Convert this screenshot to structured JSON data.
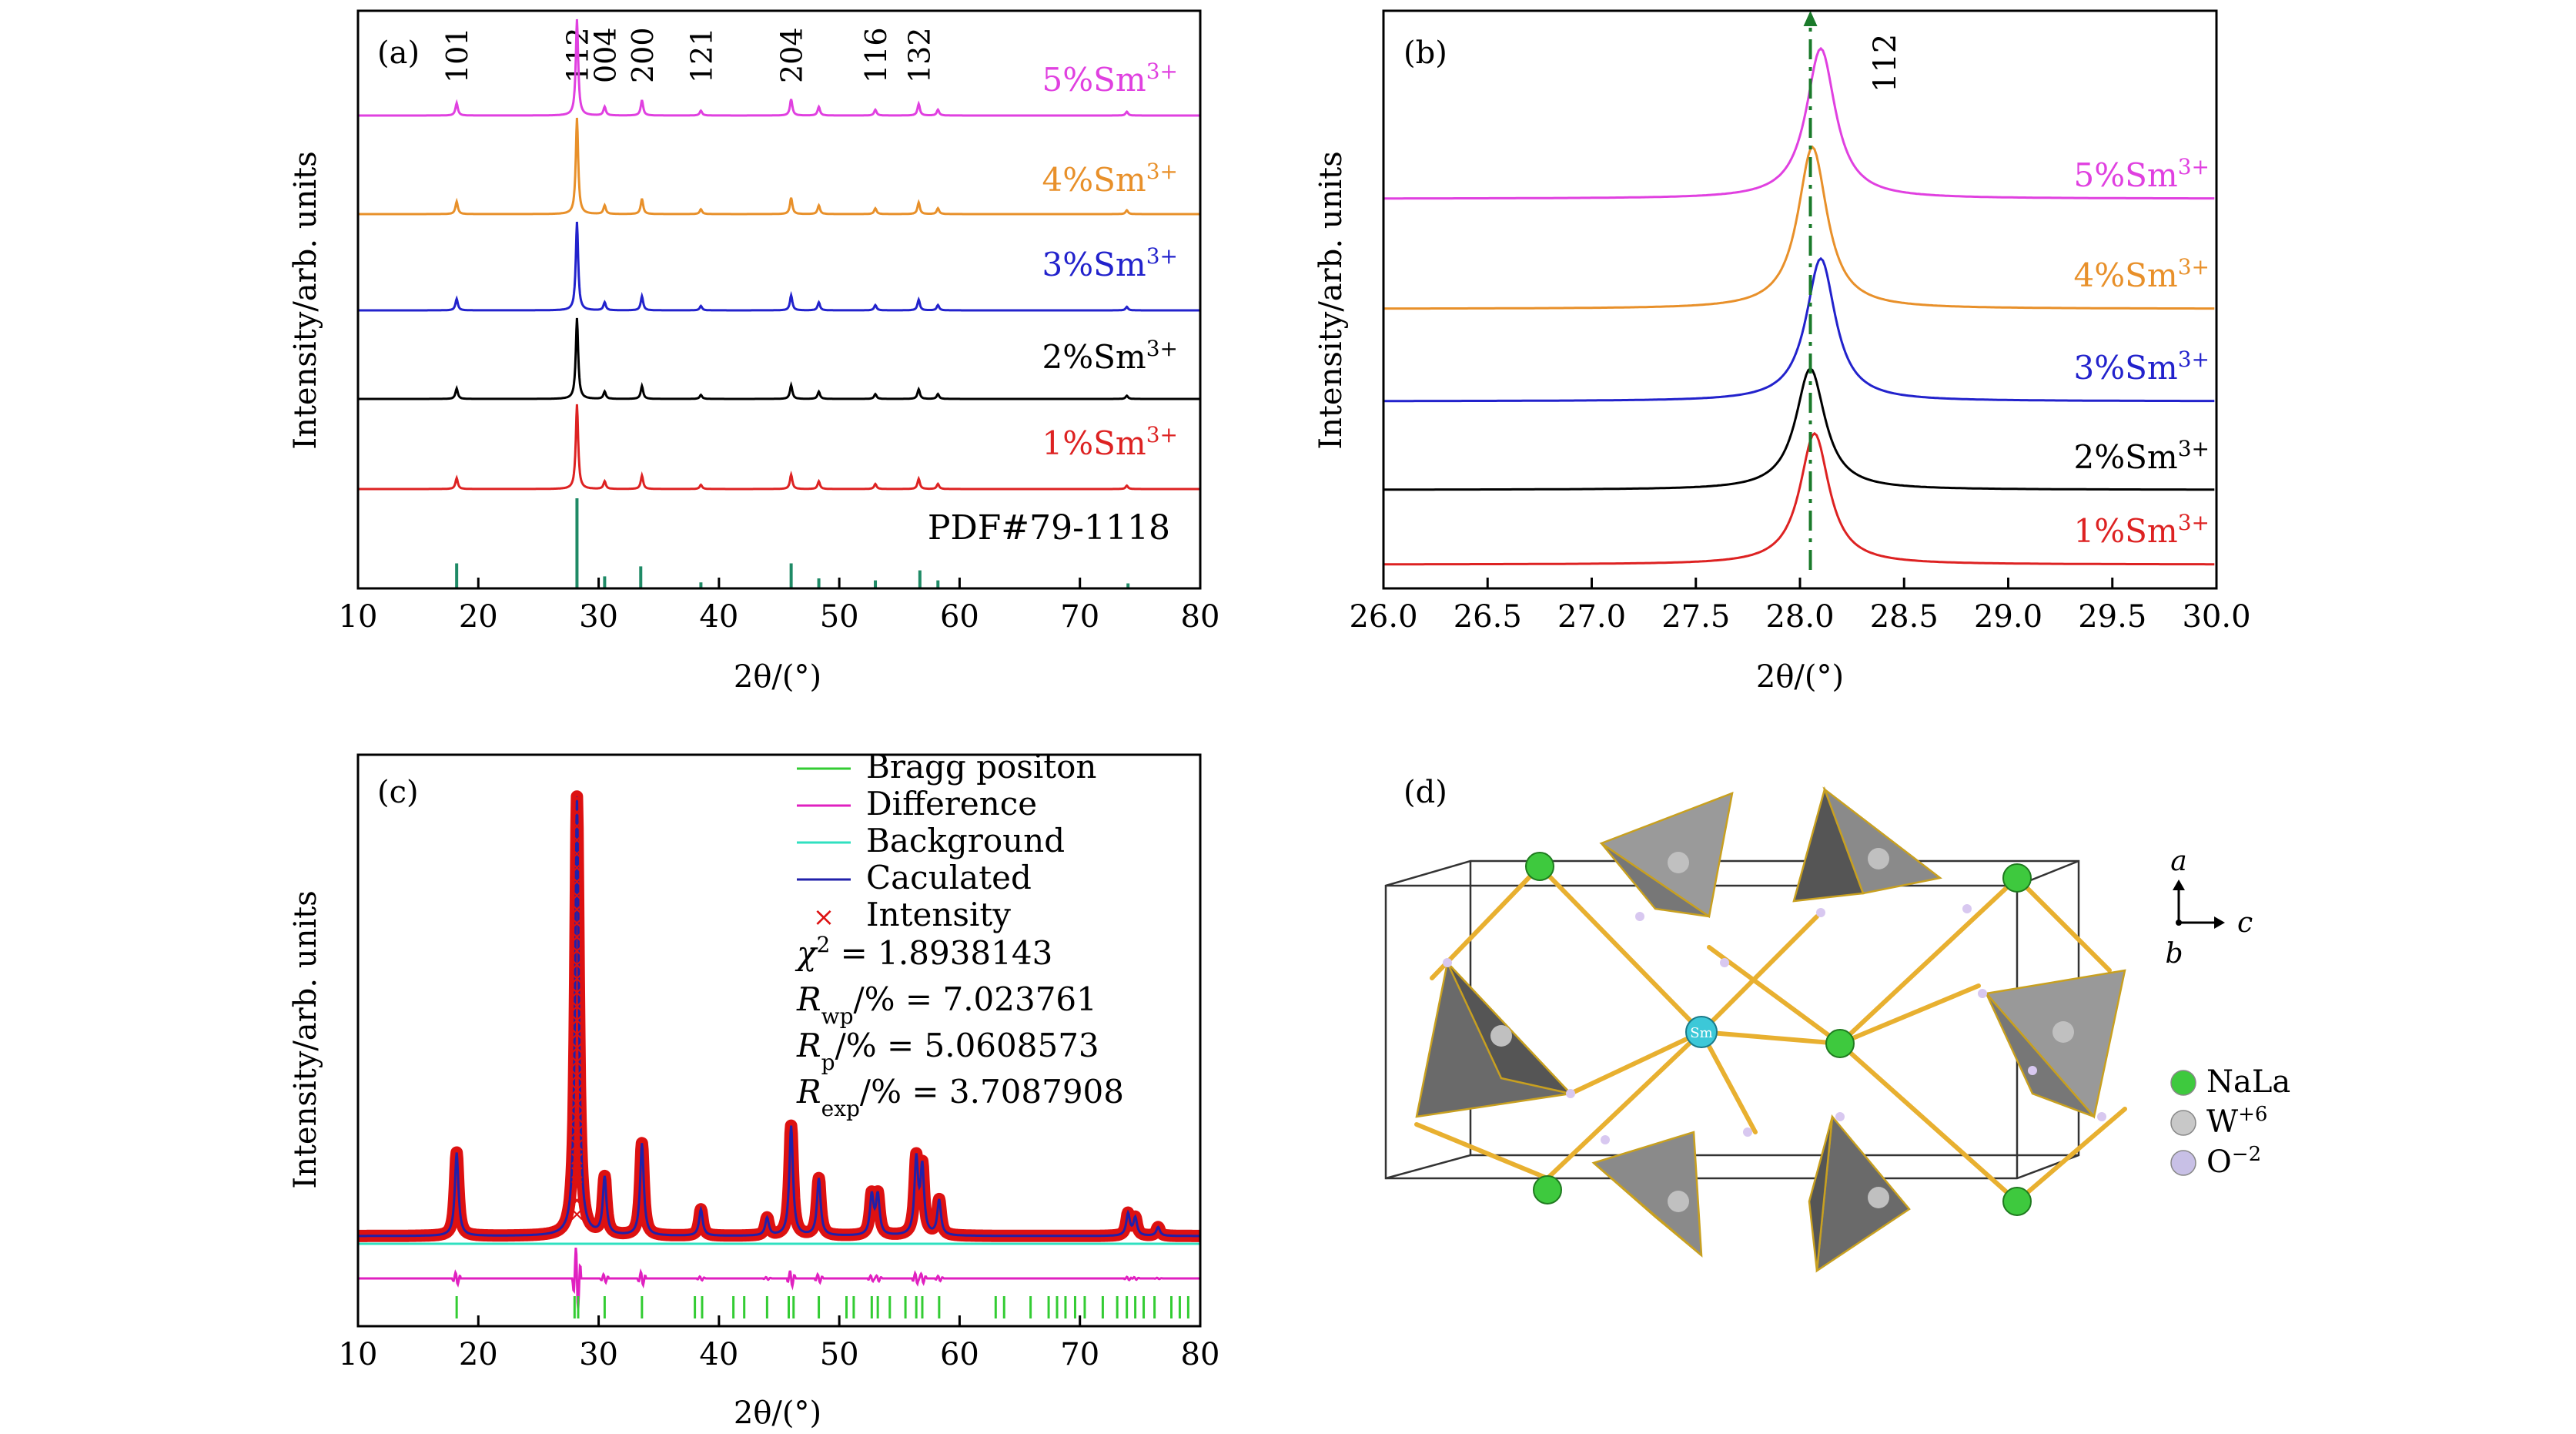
{
  "panels": {
    "a": {
      "label": "(a)",
      "xlabel": "2θ/(°)",
      "ylabel": "Intensity/arb. units",
      "pdf_label": "PDF#79-1118"
    },
    "b": {
      "label": "(b)",
      "xlabel": "2θ/(°)",
      "ylabel": "Intensity/arb. units",
      "peak_label": "112"
    },
    "c": {
      "label": "(c)",
      "xlabel": "2θ/(°)",
      "ylabel": "Intensity/arb. units",
      "legend": [
        "Bragg positon",
        "Difference",
        "Background",
        "Caculated",
        "Intensity"
      ],
      "stats": [
        {
          "sym": "χ",
          "sup": "2",
          "sub": "",
          "rest": " = 1.8938143"
        },
        {
          "sym": "R",
          "sup": "",
          "sub": "wp",
          "rest": "/% = 7.023761"
        },
        {
          "sym": "R",
          "sup": "",
          "sub": "p",
          "rest": "/% = 5.0608573"
        },
        {
          "sym": "R",
          "sup": "",
          "sub": "exp",
          "rest": "/% = 3.7087908"
        }
      ]
    },
    "d": {
      "label": "(d)",
      "axes": {
        "a": "a",
        "b": "b",
        "c": "c"
      },
      "atom_sm": "Sm",
      "legend": [
        {
          "base": "NaLa",
          "sup": "",
          "color": "#3ec93e"
        },
        {
          "base": "W",
          "sup": "+6",
          "color": "#c8c8c8"
        },
        {
          "base": "O",
          "sup": "−2",
          "color": "#c8c0e6"
        }
      ]
    }
  },
  "chart_data": [
    {
      "panel": "a",
      "type": "line",
      "title": "",
      "xlabel": "2θ/(°)",
      "ylabel": "Intensity/arb. units",
      "xlim": [
        10,
        80
      ],
      "xticks": [
        10,
        20,
        30,
        40,
        50,
        60,
        70,
        80
      ],
      "y_axis_values": false,
      "series": [
        {
          "name": "5%Sm3+",
          "color": "#e040e0"
        },
        {
          "name": "4%Sm3+",
          "color": "#e8902a"
        },
        {
          "name": "3%Sm3+",
          "color": "#2222cc"
        },
        {
          "name": "2%Sm3+",
          "color": "#000000"
        },
        {
          "name": "1%Sm3+",
          "color": "#dd2222"
        }
      ],
      "peaks": [
        {
          "x": 18.2,
          "h": 0.13,
          "hkl": "101"
        },
        {
          "x": 28.2,
          "h": 1.0,
          "hkl": "112"
        },
        {
          "x": 30.5,
          "h": 0.09,
          "hkl": "004"
        },
        {
          "x": 33.6,
          "h": 0.16,
          "hkl": "200"
        },
        {
          "x": 38.5,
          "h": 0.05,
          "hkl": "121"
        },
        {
          "x": 46.0,
          "h": 0.17,
          "hkl": "204"
        },
        {
          "x": 48.3,
          "h": 0.09,
          "hkl": ""
        },
        {
          "x": 53.0,
          "h": 0.06,
          "hkl": "116"
        },
        {
          "x": 56.6,
          "h": 0.12,
          "hkl": "132"
        },
        {
          "x": 58.2,
          "h": 0.06,
          "hkl": ""
        },
        {
          "x": 73.9,
          "h": 0.04,
          "hkl": ""
        }
      ],
      "pdf_reference": {
        "name": "PDF#79-1118",
        "color": "#1f8a66",
        "lines": [
          {
            "x": 18.2,
            "h": 0.25
          },
          {
            "x": 28.2,
            "h": 0.9
          },
          {
            "x": 30.5,
            "h": 0.12
          },
          {
            "x": 33.5,
            "h": 0.22
          },
          {
            "x": 38.5,
            "h": 0.06
          },
          {
            "x": 46.0,
            "h": 0.25
          },
          {
            "x": 48.3,
            "h": 0.1
          },
          {
            "x": 53.0,
            "h": 0.08
          },
          {
            "x": 56.7,
            "h": 0.18
          },
          {
            "x": 58.2,
            "h": 0.08
          },
          {
            "x": 74.0,
            "h": 0.05
          }
        ]
      }
    },
    {
      "panel": "b",
      "type": "line",
      "title": "",
      "xlabel": "2θ/(°)",
      "ylabel": "Intensity/arb. units",
      "xlim": [
        26.0,
        30.0
      ],
      "xticks": [
        26.0,
        26.5,
        27.0,
        27.5,
        28.0,
        28.5,
        29.0,
        29.5,
        30.0
      ],
      "reference_line": {
        "x": 28.05,
        "label": "112",
        "color": "#1a7a2a"
      },
      "series": [
        {
          "name": "5%Sm3+",
          "color": "#e040e0",
          "peak_x": 28.1,
          "peak_h": 1.0
        },
        {
          "name": "4%Sm3+",
          "color": "#e8902a",
          "peak_x": 28.06,
          "peak_h": 1.0
        },
        {
          "name": "3%Sm3+",
          "color": "#2222cc",
          "peak_x": 28.1,
          "peak_h": 0.95
        },
        {
          "name": "2%Sm3+",
          "color": "#000000",
          "peak_x": 28.05,
          "peak_h": 0.9
        },
        {
          "name": "1%Sm3+",
          "color": "#dd2222",
          "peak_x": 28.07,
          "peak_h": 0.93
        }
      ]
    },
    {
      "panel": "c",
      "type": "line",
      "title": "",
      "xlabel": "2θ/(°)",
      "ylabel": "Intensity/arb. units",
      "xlim": [
        10,
        80
      ],
      "xticks": [
        10,
        20,
        30,
        40,
        50,
        60,
        70,
        80
      ],
      "series": [
        {
          "name": "Bragg positon",
          "color": "#33cc33"
        },
        {
          "name": "Difference",
          "color": "#e020c0"
        },
        {
          "name": "Background",
          "color": "#30e0c0"
        },
        {
          "name": "Caculated",
          "color": "#2020aa"
        },
        {
          "name": "Intensity",
          "color": "#dd1111"
        }
      ],
      "peaks": [
        {
          "x": 18.2,
          "h": 0.19
        },
        {
          "x": 28.2,
          "h": 1.0
        },
        {
          "x": 30.5,
          "h": 0.13
        },
        {
          "x": 33.6,
          "h": 0.21
        },
        {
          "x": 38.5,
          "h": 0.06
        },
        {
          "x": 44.0,
          "h": 0.04
        },
        {
          "x": 46.0,
          "h": 0.25
        },
        {
          "x": 48.3,
          "h": 0.13
        },
        {
          "x": 52.7,
          "h": 0.09
        },
        {
          "x": 53.2,
          "h": 0.09
        },
        {
          "x": 56.4,
          "h": 0.17
        },
        {
          "x": 56.9,
          "h": 0.15
        },
        {
          "x": 58.3,
          "h": 0.08
        },
        {
          "x": 74.0,
          "h": 0.05
        },
        {
          "x": 74.6,
          "h": 0.04
        },
        {
          "x": 76.5,
          "h": 0.02
        }
      ],
      "bragg_positions": [
        18.2,
        28.0,
        28.3,
        30.5,
        33.6,
        38.0,
        38.6,
        41.2,
        42.1,
        44.0,
        45.8,
        46.2,
        48.3,
        50.6,
        51.2,
        52.7,
        53.2,
        54.2,
        55.5,
        56.4,
        56.9,
        58.3,
        63.0,
        63.7,
        65.9,
        67.4,
        68.1,
        68.8,
        69.6,
        70.4,
        71.9,
        73.1,
        73.9,
        74.6,
        75.3,
        76.2,
        77.6,
        78.3,
        79.0
      ]
    }
  ]
}
